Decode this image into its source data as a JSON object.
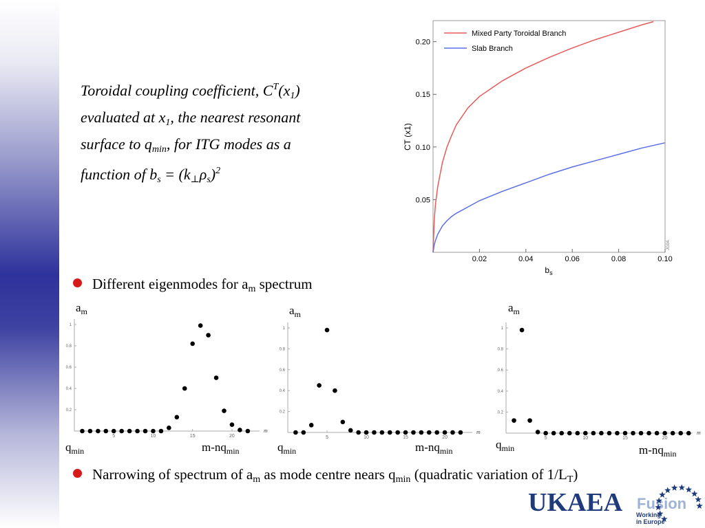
{
  "caption": {
    "t1": "Toroidal coupling coefficient, C",
    "t2": "T",
    "t3": "(x",
    "t4": "1",
    "t5": ")",
    "t6": "evaluated at x",
    "t7": "1",
    "t8": ", the nearest resonant",
    "t9": "surface to q",
    "t10": "min",
    "t11": ", for  ITG modes as a",
    "t12": "function of b",
    "t13": "s",
    "t14": " = (k",
    "t15": "⊥",
    "t16": "ρ",
    "t17": "s",
    "t18": ")",
    "t19": "2"
  },
  "bullets": {
    "b1_pre": "Different eigenmodes for a",
    "b1_sub": "m",
    "b1_post": " spectrum",
    "b2_pre": "Narrowing of spectrum of a",
    "b2_sub": "m",
    "b2_mid": " as mode centre nears q",
    "b2_sub2": "min",
    "b2_mid2": " (quadratic variation of 1/L",
    "b2_sub3": "T",
    "b2_post": ")"
  },
  "labels": {
    "am": "a",
    "am_sub": "m",
    "q": "q",
    "q_sub": "min",
    "mnq": "m-nq",
    "mnq_sub": "min"
  },
  "logo": {
    "ukaea": "UKAEA",
    "fusion": "Fusion",
    "working1": "Working",
    "working2": "in Europe",
    "star_color": "#1f3b7c"
  },
  "colors": {
    "mixed": "#e85a5a",
    "slab": "#5a6ee8",
    "bullet": "#d61a1a"
  },
  "chart_data": [
    {
      "type": "line",
      "title": "",
      "xlabel": "b_s",
      "xlabel_main": "b",
      "xlabel_sub": "s",
      "ylabel": "CT (x1)",
      "xlim": [
        0,
        0.1
      ],
      "ylim": [
        0,
        0.22
      ],
      "xticks": [
        "0.02",
        "0.04",
        "0.06",
        "0.08",
        "0.10"
      ],
      "xtick_values": [
        0.02,
        0.04,
        0.06,
        0.08,
        0.1
      ],
      "yticks": [
        "0.05",
        "0.10",
        "0.15",
        "0.20"
      ],
      "ytick_values": [
        0.05,
        0.1,
        0.15,
        0.2
      ],
      "corner_label": "JG04.",
      "legend_position": "top-left",
      "series": [
        {
          "name": "Mixed Party Toroidal Branch",
          "x": [
            0,
            0.0005,
            0.001,
            0.002,
            0.004,
            0.006,
            0.008,
            0.01,
            0.015,
            0.02,
            0.03,
            0.04,
            0.05,
            0.06,
            0.07,
            0.08,
            0.09,
            0.095
          ],
          "y": [
            0,
            0.03,
            0.045,
            0.062,
            0.085,
            0.1,
            0.111,
            0.121,
            0.137,
            0.148,
            0.163,
            0.175,
            0.185,
            0.194,
            0.202,
            0.209,
            0.216,
            0.219
          ]
        },
        {
          "name": "Slab Branch",
          "x": [
            0,
            0.0005,
            0.001,
            0.002,
            0.004,
            0.006,
            0.008,
            0.01,
            0.015,
            0.02,
            0.03,
            0.04,
            0.05,
            0.06,
            0.07,
            0.08,
            0.09,
            0.1
          ],
          "y": [
            0,
            0.007,
            0.011,
            0.017,
            0.025,
            0.03,
            0.034,
            0.037,
            0.043,
            0.049,
            0.058,
            0.066,
            0.074,
            0.081,
            0.087,
            0.093,
            0.099,
            0.104
          ]
        }
      ]
    },
    {
      "type": "scatter",
      "xlabel": "m",
      "ylim": [
        0,
        1
      ],
      "yticks": [
        "0.2",
        "0.4",
        "0.6",
        "0.8",
        "1"
      ],
      "xticks": [
        "5",
        "10",
        "15",
        "20"
      ],
      "x": [
        1,
        2,
        3,
        4,
        5,
        6,
        7,
        8,
        9,
        10,
        11,
        12,
        13,
        14,
        15,
        16,
        17,
        18,
        19,
        20,
        21,
        22
      ],
      "y": [
        0,
        0,
        0,
        0,
        0,
        0,
        0,
        0,
        0,
        0,
        0,
        0.03,
        0.13,
        0.4,
        0.82,
        0.99,
        0.9,
        0.5,
        0.19,
        0.06,
        0.01,
        0
      ]
    },
    {
      "type": "scatter",
      "xlabel": "m",
      "ylim": [
        0,
        1
      ],
      "yticks": [
        "0.2",
        "0.4",
        "0.6",
        "0.8",
        "1"
      ],
      "xticks": [
        "5",
        "10",
        "15",
        "20"
      ],
      "x": [
        1,
        2,
        3,
        4,
        5,
        6,
        7,
        8,
        9,
        10,
        11,
        12,
        13,
        14,
        15,
        16,
        17,
        18,
        19,
        20,
        21,
        22
      ],
      "y": [
        0,
        0,
        0.07,
        0.45,
        0.98,
        0.4,
        0.1,
        0.02,
        0,
        0,
        0,
        0,
        0,
        0,
        0,
        0,
        0,
        0,
        0,
        0,
        0,
        0
      ]
    },
    {
      "type": "scatter",
      "xlabel": "m",
      "ylim": [
        0,
        1
      ],
      "yticks": [
        "0.2",
        "0.4",
        "0.6",
        "0.8",
        "1"
      ],
      "xticks": [
        "5",
        "10",
        "15",
        "20"
      ],
      "x": [
        1,
        2,
        3,
        4,
        5,
        6,
        7,
        8,
        9,
        10,
        11,
        12,
        13,
        14,
        15,
        16,
        17,
        18,
        19,
        20,
        21,
        22,
        23
      ],
      "y": [
        0.12,
        0.98,
        0.12,
        0.01,
        0,
        0,
        0,
        0,
        0,
        0,
        0,
        0,
        0,
        0,
        0,
        0,
        0,
        0,
        0,
        0,
        0,
        0,
        0
      ]
    }
  ]
}
